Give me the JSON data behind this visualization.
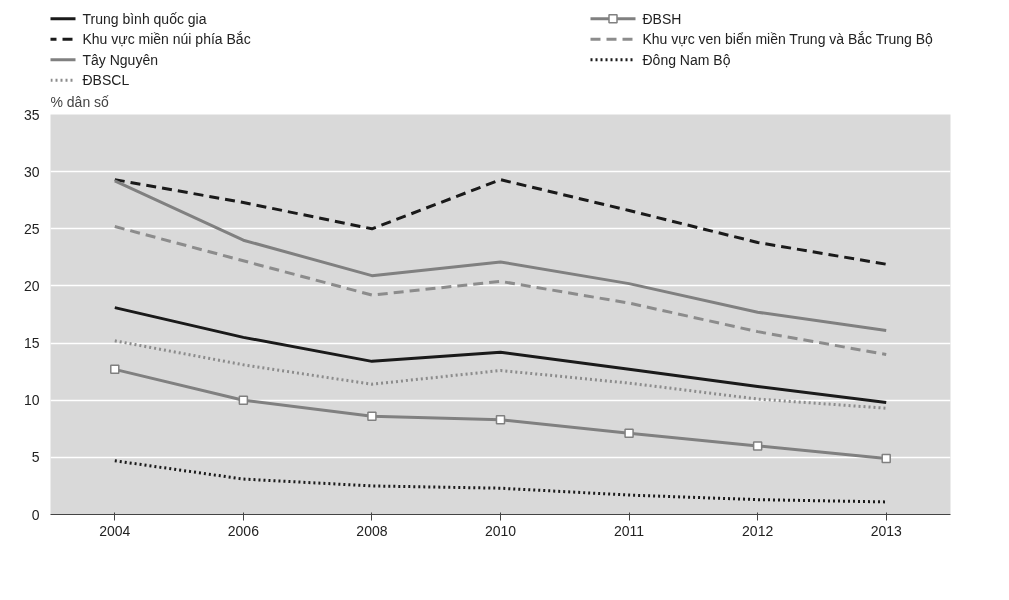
{
  "chart_data": {
    "type": "line",
    "ylabel": "% dân số",
    "categories": [
      "2004",
      "2006",
      "2008",
      "2010",
      "2011",
      "2012",
      "2013"
    ],
    "ylim": [
      0,
      35
    ],
    "yticks": [
      0,
      5,
      10,
      15,
      20,
      25,
      30,
      35
    ],
    "grid": "y",
    "legend": "top",
    "series": [
      {
        "name": "Trung bình quốc gia",
        "color": "#1a1a1a",
        "line_style": "solid",
        "marker": "none",
        "values": [
          18.1,
          15.5,
          13.4,
          14.2,
          12.7,
          11.2,
          9.8
        ]
      },
      {
        "name": "ĐBSH",
        "color": "#808080",
        "line_style": "solid",
        "marker": "square",
        "values": [
          12.7,
          10.0,
          8.6,
          8.3,
          7.1,
          6.0,
          4.9
        ]
      },
      {
        "name": "Khu vực miền núi phía Bắc",
        "color": "#1a1a1a",
        "line_style": "dashed",
        "marker": "none",
        "values": [
          29.3,
          27.3,
          25.0,
          29.3,
          26.6,
          23.8,
          21.9
        ]
      },
      {
        "name": "Khu vực ven biển miền Trung và Bắc Trung Bộ",
        "color": "#8c8c8c",
        "line_style": "dashed",
        "marker": "none",
        "values": [
          25.2,
          22.2,
          19.2,
          20.4,
          18.5,
          16.0,
          14.0
        ]
      },
      {
        "name": "Tây Nguyên",
        "color": "#808080",
        "line_style": "solid",
        "marker": "none",
        "values": [
          29.2,
          24.0,
          20.9,
          22.1,
          20.2,
          17.7,
          16.1
        ]
      },
      {
        "name": "Đông Nam Bộ",
        "color": "#1a1a1a",
        "line_style": "dotted",
        "marker": "none",
        "values": [
          4.7,
          3.1,
          2.5,
          2.3,
          1.7,
          1.3,
          1.1
        ]
      },
      {
        "name": "ĐBSCL",
        "color": "#8c8c8c",
        "line_style": "dotted",
        "marker": "none",
        "values": [
          15.2,
          13.1,
          11.4,
          12.6,
          11.5,
          10.1,
          9.3
        ]
      }
    ]
  }
}
